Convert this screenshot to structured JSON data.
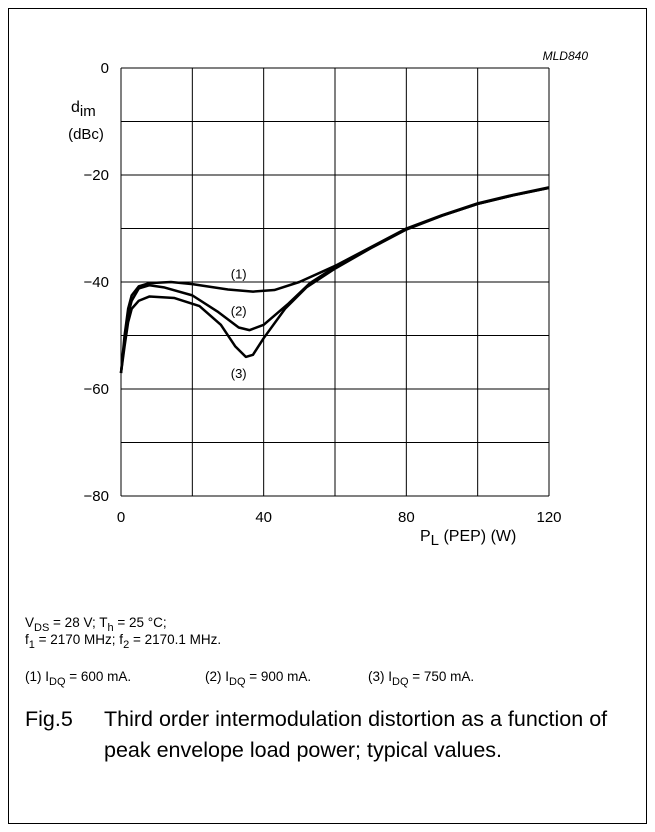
{
  "chart_data": {
    "type": "line",
    "code": "MLD840",
    "y_label": [
      "d",
      "im"
    ],
    "y_unit": "(dBc)",
    "x_label": [
      "P",
      "L",
      " (PEP) (W)"
    ],
    "xlim": [
      0,
      120
    ],
    "ylim": [
      -80,
      0
    ],
    "xticks": [
      0,
      40,
      80,
      120
    ],
    "yticks": [
      0,
      {
        "value": -20,
        "label": "−20"
      },
      {
        "value": -40,
        "label": "−40"
      },
      {
        "value": -60,
        "label": "−60"
      },
      {
        "value": -80,
        "label": "−80"
      }
    ],
    "xgrid": [
      0,
      20,
      40,
      60,
      80,
      100,
      120
    ],
    "ygrid": [
      0,
      -10,
      -20,
      -30,
      -40,
      -50,
      -60,
      -70,
      -80
    ],
    "grid": true,
    "series": [
      {
        "name": "(1)",
        "color": "#000000",
        "x": [
          0,
          1,
          2,
          3,
          5,
          8,
          14,
          20,
          30,
          37,
          43,
          50,
          60,
          70,
          80,
          90,
          100,
          110,
          120
        ],
        "values": [
          -57,
          -50,
          -45,
          -42.5,
          -40.8,
          -40.2,
          -40,
          -40.4,
          -41.4,
          -41.8,
          -41.5,
          -40,
          -37,
          -33.5,
          -30,
          -27.5,
          -25.3,
          -23.7,
          -22.3
        ]
      },
      {
        "name": "(2)",
        "color": "#000000",
        "x": [
          0,
          1,
          2,
          3,
          5,
          8,
          12,
          20,
          27,
          33,
          36,
          40,
          47,
          53,
          60,
          70,
          80,
          90,
          100,
          110,
          120
        ],
        "values": [
          -57,
          -51,
          -46,
          -43.5,
          -41.2,
          -40.6,
          -41,
          -42.5,
          -45.5,
          -48.5,
          -49,
          -48,
          -44,
          -40.2,
          -37.2,
          -33.6,
          -30.1,
          -27.6,
          -25.4,
          -23.8,
          -22.4
        ]
      },
      {
        "name": "(3)",
        "color": "#000000",
        "x": [
          0,
          1,
          2,
          3,
          5,
          8,
          15,
          22,
          28,
          32,
          35,
          37,
          40,
          46,
          52,
          60,
          70,
          80,
          90,
          100,
          110,
          120
        ],
        "values": [
          -57,
          -52,
          -47.5,
          -45,
          -43.5,
          -42.7,
          -43,
          -44.5,
          -48,
          -52,
          -54,
          -53.6,
          -50.5,
          -45,
          -41,
          -37.5,
          -33.7,
          -30.2,
          -27.6,
          -25.4,
          -23.8,
          -22.4
        ]
      }
    ]
  },
  "conditions": [
    [
      "V",
      "DS",
      " = 28 V; T",
      "h",
      " = 25 °C;"
    ],
    [
      "f",
      "1",
      " = 2170 MHz; f",
      "2",
      " = 2170.1 MHz."
    ]
  ],
  "legend": [
    [
      "(1)  I",
      "DQ",
      " = 600 mA."
    ],
    [
      "(2)  I",
      "DQ",
      " = 900 mA."
    ],
    [
      "(3)  I",
      "DQ",
      " = 750 mA."
    ]
  ],
  "caption": {
    "label": "Fig.5",
    "text": "Third order intermodulation distortion as a function of peak envelope load power; typical values."
  }
}
